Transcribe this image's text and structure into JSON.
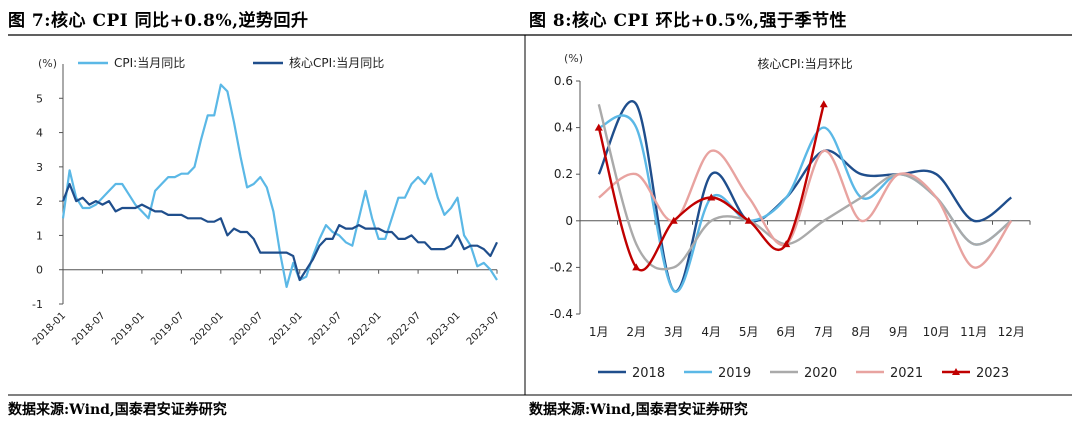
{
  "panels": {
    "left": {
      "title": "图 7:核心 CPI 同比+0.8%,逆势回升",
      "unit": "(%)",
      "source": "数据来源:Wind,国泰君安证券研究"
    },
    "right": {
      "title": "图 8:核心 CPI 环比+0.5%,强于季节性",
      "unit": "(%)",
      "source": "数据来源:Wind,国泰君安证券研究"
    }
  },
  "chart_data": [
    {
      "type": "line",
      "title": "",
      "ylabel": "(%)",
      "ylim": [
        -1,
        6
      ],
      "yticks": [
        -1,
        0,
        1,
        2,
        3,
        4,
        5
      ],
      "x_ticks": [
        "2018-01",
        "2018-07",
        "2019-01",
        "2019-07",
        "2020-01",
        "2020-07",
        "2021-01",
        "2021-07",
        "2022-01",
        "2022-07",
        "2023-01",
        "2023-07"
      ],
      "x_range": [
        "2018-01",
        "2023-07"
      ],
      "legend_position": "top",
      "grid": false,
      "series": [
        {
          "name": "CPI:当月同比",
          "color": "#5bb8e6",
          "values": [
            1.5,
            2.9,
            2.1,
            1.8,
            1.8,
            1.9,
            2.1,
            2.3,
            2.5,
            2.5,
            2.2,
            1.9,
            1.7,
            1.5,
            2.3,
            2.5,
            2.7,
            2.7,
            2.8,
            2.8,
            3.0,
            3.8,
            4.5,
            4.5,
            5.4,
            5.2,
            4.3,
            3.3,
            2.4,
            2.5,
            2.7,
            2.4,
            1.7,
            0.5,
            -0.5,
            0.2,
            -0.3,
            -0.2,
            0.4,
            0.9,
            1.3,
            1.1,
            1.0,
            0.8,
            0.7,
            1.5,
            2.3,
            1.5,
            0.9,
            0.9,
            1.5,
            2.1,
            2.1,
            2.5,
            2.7,
            2.5,
            2.8,
            2.1,
            1.6,
            1.8,
            2.1,
            1.0,
            0.7,
            0.1,
            0.2,
            0.0,
            -0.3
          ]
        },
        {
          "name": "核心CPI:当月同比",
          "color": "#1f4e8c",
          "values": [
            2.0,
            2.5,
            2.0,
            2.1,
            1.9,
            2.0,
            1.9,
            2.0,
            1.7,
            1.8,
            1.8,
            1.8,
            1.9,
            1.8,
            1.7,
            1.7,
            1.6,
            1.6,
            1.6,
            1.5,
            1.5,
            1.5,
            1.4,
            1.4,
            1.5,
            1.0,
            1.2,
            1.1,
            1.1,
            0.9,
            0.5,
            0.5,
            0.5,
            0.5,
            0.5,
            0.4,
            -0.3,
            0.0,
            0.3,
            0.7,
            0.9,
            0.9,
            1.3,
            1.2,
            1.2,
            1.3,
            1.2,
            1.2,
            1.2,
            1.1,
            1.1,
            0.9,
            0.9,
            1.0,
            0.8,
            0.8,
            0.6,
            0.6,
            0.6,
            0.7,
            1.0,
            0.6,
            0.7,
            0.7,
            0.6,
            0.4,
            0.8
          ]
        }
      ]
    },
    {
      "type": "line",
      "title": "核心CPI:当月环比",
      "ylabel": "(%)",
      "ylim": [
        -0.4,
        0.6
      ],
      "yticks": [
        -0.4,
        -0.2,
        0.0,
        0.2,
        0.4,
        0.6
      ],
      "categories": [
        "1月",
        "2月",
        "3月",
        "4月",
        "5月",
        "6月",
        "7月",
        "8月",
        "9月",
        "10月",
        "11月",
        "12月"
      ],
      "legend_position": "bottom",
      "grid": false,
      "series": [
        {
          "name": "2018",
          "color": "#1f4e8c",
          "marker": "none",
          "values": [
            0.2,
            0.5,
            -0.3,
            0.2,
            0.0,
            0.1,
            0.3,
            0.2,
            0.2,
            0.2,
            0.0,
            0.1
          ]
        },
        {
          "name": "2019",
          "color": "#5bb8e6",
          "marker": "none",
          "values": [
            0.4,
            0.4,
            -0.3,
            0.1,
            0.0,
            0.1,
            0.4,
            0.1,
            0.2,
            0.1,
            -0.1,
            0.0
          ]
        },
        {
          "name": "2020",
          "color": "#aaaaaa",
          "marker": "none",
          "values": [
            0.5,
            -0.1,
            -0.2,
            0.0,
            0.0,
            -0.1,
            0.0,
            0.1,
            0.2,
            0.1,
            -0.1,
            0.0
          ]
        },
        {
          "name": "2021",
          "color": "#e8a3a0",
          "marker": "none",
          "values": [
            0.1,
            0.2,
            0.0,
            0.3,
            0.1,
            -0.1,
            0.3,
            0.0,
            0.2,
            0.1,
            -0.2,
            0.0
          ]
        },
        {
          "name": "2023",
          "color": "#c00000",
          "marker": "triangle",
          "values": [
            0.4,
            -0.2,
            0.0,
            0.1,
            0.0,
            -0.1,
            0.5,
            null,
            null,
            null,
            null,
            null
          ]
        }
      ]
    }
  ]
}
